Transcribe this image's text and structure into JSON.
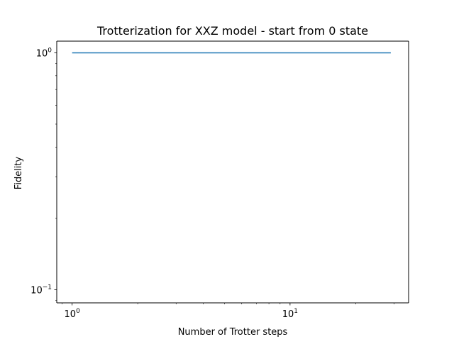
{
  "chart_data": {
    "type": "line",
    "title": "Trotterization for XXZ model - start from 0 state",
    "xlabel": "Number of Trotter steps",
    "ylabel": "Fidelity",
    "xscale": "log",
    "yscale": "log",
    "xlim": [
      0.85,
      35
    ],
    "ylim": [
      0.088,
      1.12
    ],
    "grid": false,
    "x_ticks": [
      {
        "value": 1,
        "base": "10",
        "exp": "0"
      },
      {
        "value": 10,
        "base": "10",
        "exp": "1"
      }
    ],
    "y_ticks": [
      {
        "value": 0.1,
        "base": "10",
        "exp": "−1"
      },
      {
        "value": 1,
        "base": "10",
        "exp": "0"
      }
    ],
    "series": [
      {
        "name": "fidelity",
        "color": "#1f77b4",
        "x": [
          1,
          2,
          3,
          4,
          5,
          6,
          7,
          8,
          9,
          10,
          11,
          12,
          13,
          14,
          15,
          16,
          17,
          18,
          19,
          20,
          21,
          22,
          23,
          24,
          25,
          26,
          27,
          28,
          29
        ],
        "y": [
          1,
          1,
          1,
          1,
          1,
          1,
          1,
          1,
          1,
          1,
          1,
          1,
          1,
          1,
          1,
          1,
          1,
          1,
          1,
          1,
          1,
          1,
          1,
          1,
          1,
          1,
          1,
          1,
          1
        ]
      }
    ]
  }
}
